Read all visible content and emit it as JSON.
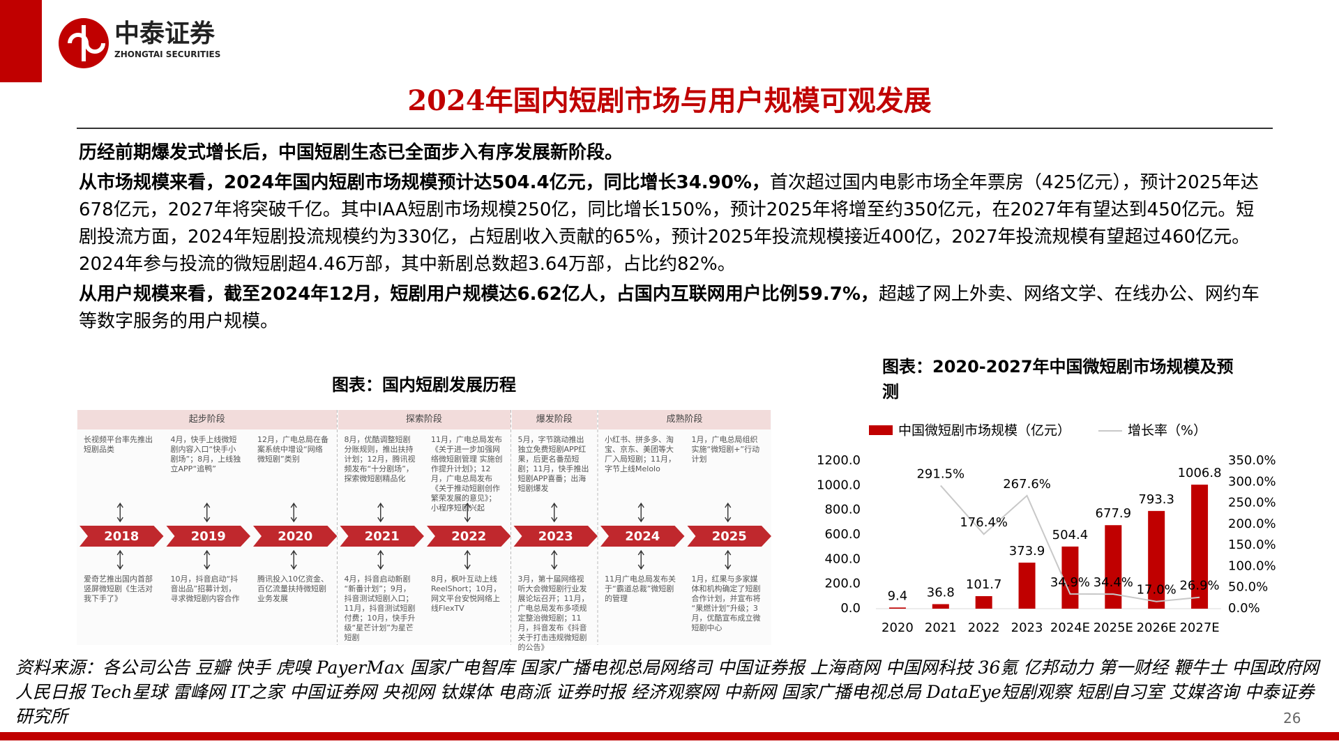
{
  "header": {
    "logo_cn": "中泰证券",
    "logo_en": "ZHONGTAI SECURITIES"
  },
  "title": "2024年国内短剧市场与用户规模可观发展",
  "paragraphs": [
    {
      "bold": "历经前期爆发式增长后，中国短剧生态已全面步入有序发展新阶段。"
    },
    {
      "bold": "从市场规模来看，2024年国内短剧市场规模预计达504.4亿元，同比增长34.90%，",
      "text": "首次超过国内电影市场全年票房（425亿元），预计2025年达678亿元，2027年将突破千亿。其中IAA短剧市场规模250亿，同比增长150%，预计2025年将增至约350亿元，在2027年有望达到450亿元。短剧投流方面，2024年短剧投流规模约为330亿，占短剧收入贡献的65%，预计2025年投流规模接近400亿，2027年投流规模有望超过460亿元。2024年参与投流的微短剧超4.46万部，其中新剧总数超3.64万部，占比约82%。"
    },
    {
      "bold": "从用户规模来看，截至2024年12月，短剧用户规模达6.62亿人，占国内互联网用户比例59.7%，",
      "text": "超越了网上外卖、网络文学、在线办公、网约车等数字服务的用户规模。"
    }
  ],
  "timeline": {
    "title": "图表：国内短剧发展历程",
    "phases": [
      {
        "label": "起步阶段",
        "events": [
          {
            "year": 2018,
            "top": "长视频平台率先推出短剧品类",
            "bottom": "爱奇艺推出国内首部竖屏微短剧《生活对我下手了》"
          },
          {
            "year": 2019,
            "top": "4月，快手上线微短剧内容入口“快手小剧场”；8月，上线独立APP“追鸭”",
            "bottom": "10月，抖音启动“抖音出品”招募计划，寻求微短剧内容合作"
          },
          {
            "year": 2020,
            "top": "12月，广电总局在备案系统中增设“网络微短剧”类别",
            "bottom": "腾讯投入10亿资金、百亿流量扶持微短剧业务发展"
          }
        ]
      },
      {
        "label": "探索阶段",
        "events": [
          {
            "year": 2021,
            "top": "8月，优酷调整短剧分账规则，推出扶持计划；12月，腾讯视频发布“十分剧场”，探索微短剧精品化",
            "bottom": "4月，抖音启动新剧“新番计划”；9月，抖音测试短剧入口；11月，抖音测试短剧付费；10月，快手升级“星芒计划”为星芒短剧"
          },
          {
            "year": 2022,
            "top": "11月，广电总局发布《关于进一步加强网络微短剧管理 实施创作提升计划》；12月，广电总局发布《关于推动短剧创作繁荣发展的意见》；小程序短剧兴起",
            "bottom": "8月，枫叶互动上线ReelShort；10月，网文平台安悦网络上线FlexTV"
          }
        ]
      },
      {
        "label": "爆发阶段",
        "events": [
          {
            "year": 2023,
            "top": "5月，字节跳动推出独立免费短剧APP红果，后更名番茄短剧；11月，快手推出短剧APP喜番；出海短剧爆发",
            "bottom": "3月，第十届网络视听大会微短剧行业发展论坛召开；11月，广电总局发布多项规定整治微短剧；11月，抖音发布《抖音关于打击违规微短剧的公告》"
          }
        ]
      },
      {
        "label": "成熟阶段",
        "events": [
          {
            "year": 2024,
            "top": "小红书、拼多多、淘宝、京东、美团等大厂入局短剧；11月，字节上线Melolo",
            "bottom": "11月广电总局发布关于“霸道总裁”微短剧的管理"
          },
          {
            "year": 2025,
            "top": "1月，广电总局组织实施“微短剧+”行动计划",
            "bottom": "1月，红果与多家媒体和机构确定了短剧合作计划，并宣布将“果燃计划”升级；3月，优酷宣布成立微短剧中心"
          }
        ]
      }
    ]
  },
  "chart_data": {
    "type": "bar-line",
    "title": "图表：2020-2027年中国微短剧市场规模及预测",
    "categories": [
      "2020",
      "2021",
      "2022",
      "2023",
      "2024E",
      "2025E",
      "2026E",
      "2027E"
    ],
    "series": [
      {
        "name": "中国微短剧市场规模（亿元）",
        "type": "bar",
        "color": "#c00000",
        "values": [
          9.4,
          36.8,
          101.7,
          373.9,
          504.4,
          677.9,
          793.3,
          1006.8
        ]
      },
      {
        "name": "增长率（%）",
        "type": "line",
        "axis": "y2",
        "color": "#c8c8c8",
        "values": [
          null,
          291.5,
          176.4,
          267.6,
          34.9,
          34.4,
          17.0,
          26.9
        ],
        "value_labels": [
          null,
          "291.5%",
          "176.4%",
          "267.6%",
          "34.9%",
          "34.4%",
          "17.0%",
          "26.9%"
        ]
      }
    ],
    "ylim": [
      0,
      1200
    ],
    "yticks": [
      {
        "value": 0,
        "label": "0.0"
      },
      {
        "value": 200,
        "label": "200.0"
      },
      {
        "value": 400,
        "label": "400.0"
      },
      {
        "value": 600,
        "label": "600.0"
      },
      {
        "value": 800,
        "label": "800.0"
      },
      {
        "value": 1000,
        "label": "1000.0"
      },
      {
        "value": 1200,
        "label": "1200.0"
      }
    ],
    "y2lim": [
      0,
      350
    ],
    "y2ticks": [
      {
        "value": 0,
        "label": "0.0%"
      },
      {
        "value": 50,
        "label": "50.0%"
      },
      {
        "value": 100,
        "label": "100.0%"
      },
      {
        "value": 150,
        "label": "150.0%"
      },
      {
        "value": 200,
        "label": "200.0%"
      },
      {
        "value": 250,
        "label": "250.0%"
      },
      {
        "value": 300,
        "label": "300.0%"
      },
      {
        "value": 350,
        "label": "350.0%"
      }
    ],
    "grid": false,
    "legend": "top"
  },
  "footer": {
    "source": "资料来源：各公司公告 豆瓣 快手 虎嗅 PayerMax 国家广电智库 国家广播电视总局网络司 中国证券报 上海商网 中国网科技 36氪 亿邦动力 第一财经 鞭牛士 中国政府网 人民日报 Tech星球 雷峰网 IT之家 中国证券网 央视网 钛媒体 电商派 证券时报 经济观察网 中新网 国家广播电视总局 DataEye短剧观察 短剧自习室 艾媒咨询 中泰证券研究所",
    "page": 26
  }
}
